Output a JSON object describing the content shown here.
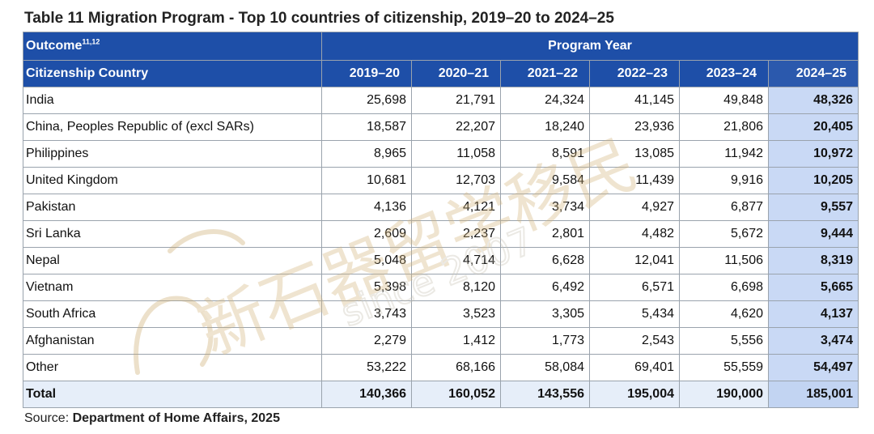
{
  "title": "Table 11 Migration Program - Top 10 countries of citizenship, 2019–20 to 2024–25",
  "header": {
    "outcome_label": "Outcome",
    "outcome_sup": "11,12",
    "program_year_label": "Program Year",
    "country_label": "Citizenship Country",
    "years": [
      "2019–20",
      "2020–21",
      "2021–22",
      "2022–23",
      "2023–24",
      "2024–25"
    ]
  },
  "rows": [
    {
      "country": "India",
      "values": [
        "25,698",
        "21,791",
        "24,324",
        "41,145",
        "49,848",
        "48,326"
      ]
    },
    {
      "country": "China, Peoples Republic of (excl SARs)",
      "values": [
        "18,587",
        "22,207",
        "18,240",
        "23,936",
        "21,806",
        "20,405"
      ]
    },
    {
      "country": "Philippines",
      "values": [
        "8,965",
        "11,058",
        "8,591",
        "13,085",
        "11,942",
        "10,972"
      ]
    },
    {
      "country": "United Kingdom",
      "values": [
        "10,681",
        "12,703",
        "9,584",
        "11,439",
        "9,916",
        "10,205"
      ]
    },
    {
      "country": "Pakistan",
      "values": [
        "4,136",
        "4,121",
        "3,734",
        "4,927",
        "6,877",
        "9,557"
      ]
    },
    {
      "country": "Sri Lanka",
      "values": [
        "2,609",
        "2,237",
        "2,801",
        "4,482",
        "5,672",
        "9,444"
      ]
    },
    {
      "country": "Nepal",
      "values": [
        "5,048",
        "4,714",
        "6,628",
        "12,041",
        "11,506",
        "8,319"
      ]
    },
    {
      "country": "Vietnam",
      "values": [
        "5,398",
        "8,120",
        "6,492",
        "6,571",
        "6,698",
        "5,665"
      ]
    },
    {
      "country": "South Africa",
      "values": [
        "3,743",
        "3,523",
        "3,305",
        "5,434",
        "4,620",
        "4,137"
      ]
    },
    {
      "country": "Afghanistan",
      "values": [
        "2,279",
        "1,412",
        "1,773",
        "2,543",
        "5,556",
        "3,474"
      ]
    },
    {
      "country": "Other",
      "values": [
        "53,222",
        "68,166",
        "58,084",
        "69,401",
        "55,559",
        "54,497"
      ]
    },
    {
      "country": "Total",
      "values": [
        "140,366",
        "160,052",
        "143,556",
        "195,004",
        "190,000",
        "185,001"
      ]
    }
  ],
  "source": {
    "label": "Source:",
    "text": "Department of Home Affairs, 2025"
  },
  "watermark": {
    "text_cn": "新石器留学移民",
    "text_since": "since 2007"
  }
}
